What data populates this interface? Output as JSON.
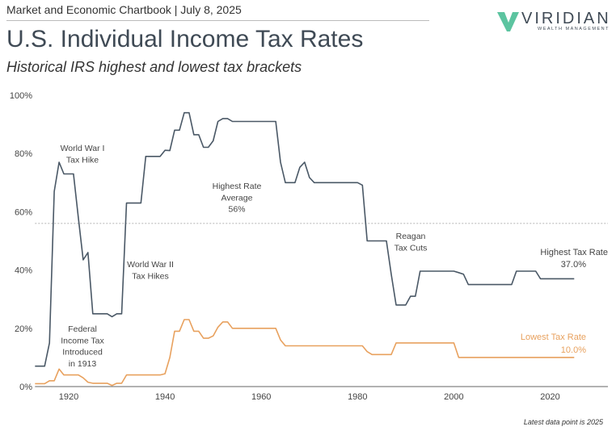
{
  "header": {
    "text": "Market and Economic Chartbook | July 8, 2025"
  },
  "title": "U.S. Individual Income Tax Rates",
  "subtitle": "Historical IRS highest and lowest tax brackets",
  "logo": {
    "name": "VIRIDIAN",
    "tagline": "WEALTH MANAGEMENT",
    "color": "#5cc4a0"
  },
  "footnote": "Latest data point is 2025",
  "chart_data": {
    "type": "line",
    "xlim": [
      1913,
      2032
    ],
    "ylim": [
      0,
      100
    ],
    "x_ticks": [
      {
        "value": 1920,
        "label": "1920"
      },
      {
        "value": 1940,
        "label": "1940"
      },
      {
        "value": 1960,
        "label": "1960"
      },
      {
        "value": 1980,
        "label": "1980"
      },
      {
        "value": 2000,
        "label": "2000"
      },
      {
        "value": 2020,
        "label": "2020"
      }
    ],
    "y_ticks": [
      {
        "value": 0,
        "label": "0%"
      },
      {
        "value": 20,
        "label": "20%"
      },
      {
        "value": 40,
        "label": "40%"
      },
      {
        "value": 60,
        "label": "60%"
      },
      {
        "value": 80,
        "label": "80%"
      },
      {
        "value": 100,
        "label": "100%"
      }
    ],
    "grid": false,
    "x": [
      1913,
      1914,
      1915,
      1916,
      1917,
      1918,
      1919,
      1920,
      1921,
      1922,
      1923,
      1924,
      1925,
      1926,
      1927,
      1928,
      1929,
      1930,
      1931,
      1932,
      1933,
      1934,
      1935,
      1936,
      1937,
      1938,
      1939,
      1940,
      1941,
      1942,
      1943,
      1944,
      1945,
      1946,
      1947,
      1948,
      1949,
      1950,
      1951,
      1952,
      1953,
      1954,
      1955,
      1956,
      1957,
      1958,
      1959,
      1960,
      1961,
      1962,
      1963,
      1964,
      1965,
      1966,
      1967,
      1968,
      1969,
      1970,
      1971,
      1972,
      1973,
      1974,
      1975,
      1976,
      1977,
      1978,
      1979,
      1980,
      1981,
      1982,
      1983,
      1984,
      1985,
      1986,
      1987,
      1988,
      1989,
      1990,
      1991,
      1992,
      1993,
      1994,
      1995,
      1996,
      1997,
      1998,
      1999,
      2000,
      2001,
      2002,
      2003,
      2004,
      2005,
      2006,
      2007,
      2008,
      2009,
      2010,
      2011,
      2012,
      2013,
      2014,
      2015,
      2016,
      2017,
      2018,
      2019,
      2020,
      2021,
      2022,
      2023,
      2024,
      2025
    ],
    "series": [
      {
        "name": "Highest Tax Rate",
        "color": "#4a5866",
        "label": "Highest Tax Rate",
        "value_label": "37.0%",
        "values": [
          7,
          7,
          7,
          15,
          67,
          77,
          73,
          73,
          73,
          58,
          43.5,
          46,
          25,
          25,
          25,
          25,
          24,
          25,
          25,
          63,
          63,
          63,
          63,
          79,
          79,
          79,
          79,
          81.1,
          81,
          88,
          88,
          94,
          94,
          86.45,
          86.45,
          82.13,
          82.13,
          84.36,
          91,
          92,
          92,
          91,
          91,
          91,
          91,
          91,
          91,
          91,
          91,
          91,
          91,
          77,
          70,
          70,
          70,
          75.25,
          77,
          71.75,
          70,
          70,
          70,
          70,
          70,
          70,
          70,
          70,
          70,
          70,
          69.13,
          50,
          50,
          50,
          50,
          50,
          38.5,
          28,
          28,
          28,
          31,
          31,
          39.6,
          39.6,
          39.6,
          39.6,
          39.6,
          39.6,
          39.6,
          39.6,
          39.1,
          38.6,
          35,
          35,
          35,
          35,
          35,
          35,
          35,
          35,
          35,
          35,
          39.6,
          39.6,
          39.6,
          39.6,
          39.6,
          37,
          37,
          37,
          37,
          37,
          37,
          37,
          37
        ]
      },
      {
        "name": "Lowest Tax Rate",
        "color": "#e8a15e",
        "label": "Lowest Tax Rate",
        "value_label": "10.0%",
        "values": [
          1,
          1,
          1,
          2,
          2,
          6,
          4,
          4,
          4,
          4,
          3,
          1.5,
          1.13,
          1.13,
          1.13,
          1.13,
          0.38,
          1.13,
          1.13,
          4,
          4,
          4,
          4,
          4,
          4,
          4,
          4,
          4.4,
          10,
          19,
          19,
          23,
          23,
          19,
          19,
          16.6,
          16.6,
          17.4,
          20.4,
          22.2,
          22.2,
          20,
          20,
          20,
          20,
          20,
          20,
          20,
          20,
          20,
          20,
          16,
          14,
          14,
          14,
          14,
          14,
          14,
          14,
          14,
          14,
          14,
          14,
          14,
          14,
          14,
          14,
          14,
          14,
          12,
          11,
          11,
          11,
          11,
          11,
          15,
          15,
          15,
          15,
          15,
          15,
          15,
          15,
          15,
          15,
          15,
          15,
          15,
          10,
          10,
          10,
          10,
          10,
          10,
          10,
          10,
          10,
          10,
          10,
          10,
          10,
          10,
          10,
          10,
          10,
          10,
          10,
          10,
          10,
          10,
          10,
          10,
          10
        ]
      }
    ],
    "reference_line": {
      "value": 56,
      "style": "dotted"
    },
    "annotations": [
      {
        "id": "wwi",
        "lines": [
          "World War I",
          "Tax Hike"
        ]
      },
      {
        "id": "fed",
        "lines": [
          "Federal",
          "Income Tax",
          "Introduced",
          "in 1913"
        ]
      },
      {
        "id": "wwii",
        "lines": [
          "World War II",
          "Tax Hikes"
        ]
      },
      {
        "id": "avg",
        "lines": [
          "Highest Rate",
          "Average",
          "56%"
        ]
      },
      {
        "id": "reagan",
        "lines": [
          "Reagan",
          "Tax Cuts"
        ]
      }
    ]
  }
}
